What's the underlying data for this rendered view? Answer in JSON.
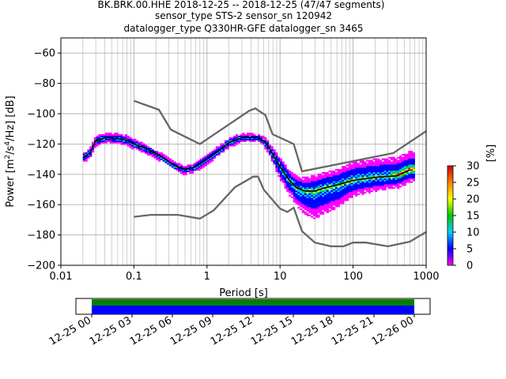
{
  "chart_data": {
    "type": "heatmap",
    "title_lines": [
      "BK.BRK.00.HHE   2018-12-25 -- 2018-12-25  (47/47 segments)",
      "sensor_type STS-2 sensor_sn 120942",
      "datalogger_type Q330HR-GFE datalogger_sn 3465"
    ],
    "xlabel": "Period [s]",
    "ylabel": "Power [m$^2$/s$^4$/Hz] [dB]",
    "ylabel_parts": [
      "Power [m",
      "2",
      "/s",
      "4",
      "/Hz] [dB]"
    ],
    "x_scale": "log",
    "xlim": [
      0.01,
      1000
    ],
    "ylim": [
      -200,
      -50
    ],
    "x_ticks": [
      {
        "v": 0.01,
        "label": "0.01"
      },
      {
        "v": 0.1,
        "label": "0.1"
      },
      {
        "v": 1,
        "label": "1"
      },
      {
        "v": 10,
        "label": "10"
      },
      {
        "v": 100,
        "label": "100"
      },
      {
        "v": 1000,
        "label": "1000"
      }
    ],
    "y_ticks": [
      {
        "v": -60,
        "label": "−60"
      },
      {
        "v": -80,
        "label": "−80"
      },
      {
        "v": -100,
        "label": "−100"
      },
      {
        "v": -120,
        "label": "−120"
      },
      {
        "v": -140,
        "label": "−140"
      },
      {
        "v": -160,
        "label": "−160"
      },
      {
        "v": -180,
        "label": "−180"
      },
      {
        "v": -200,
        "label": "−200"
      }
    ],
    "grid": true,
    "colorbar": {
      "label": "[%]",
      "range": [
        0,
        30
      ],
      "ticks": [
        {
          "v": 0,
          "label": "0"
        },
        {
          "v": 5,
          "label": "5"
        },
        {
          "v": 10,
          "label": "10"
        },
        {
          "v": 15,
          "label": "15"
        },
        {
          "v": 20,
          "label": "20"
        },
        {
          "v": 25,
          "label": "25"
        },
        {
          "v": 30,
          "label": "30"
        }
      ],
      "colors": [
        "#ff00ff",
        "#0000ff",
        "#00d0ff",
        "#00c800",
        "#ffff00",
        "#ff8000",
        "#d00000"
      ]
    },
    "noise_model_high": {
      "x": [
        0.1,
        0.22,
        0.32,
        0.8,
        3.8,
        4.6,
        6.3,
        7.9,
        15.4,
        20,
        354.8,
        1000
      ],
      "y": [
        -91.5,
        -97.4,
        -110.5,
        -120,
        -98,
        -96.5,
        -101,
        -113.5,
        -120,
        -138,
        -126,
        -111.5
      ]
    },
    "noise_model_low": {
      "x": [
        0.1,
        0.17,
        0.4,
        0.8,
        1.24,
        2.4,
        4.3,
        5,
        6,
        10,
        12.6,
        15.4,
        20,
        30,
        50,
        74,
        100,
        150,
        300,
        600,
        1000
      ],
      "y": [
        -168,
        -166.7,
        -166.7,
        -169.2,
        -163.7,
        -148.6,
        -141.5,
        -141.5,
        -150.2,
        -162.6,
        -164.8,
        -162,
        -177.5,
        -185,
        -187.5,
        -187.5,
        -185,
        -185,
        -187.5,
        -184.4,
        -178
      ]
    },
    "mean_curve": {
      "x": [
        0.02,
        0.025,
        0.03,
        0.04,
        0.05,
        0.06,
        0.08,
        0.1,
        0.13,
        0.18,
        0.25,
        0.35,
        0.5,
        0.7,
        1,
        1.5,
        2,
        3,
        4,
        5,
        6,
        7,
        8,
        10,
        13,
        17,
        22,
        30,
        40,
        60,
        100,
        200,
        400,
        600
      ],
      "y": [
        -129,
        -126,
        -118,
        -116,
        -116,
        -116.5,
        -117.5,
        -120,
        -122,
        -125,
        -129,
        -134,
        -137,
        -135,
        -130,
        -124,
        -119,
        -116,
        -115.5,
        -116,
        -118,
        -122,
        -127,
        -135,
        -143,
        -149,
        -151,
        -151,
        -149,
        -147,
        -144,
        -142,
        -141,
        -137
      ]
    },
    "heatmap_spread": {
      "x": [
        0.02,
        0.03,
        0.05,
        0.1,
        0.2,
        0.5,
        1,
        2,
        5,
        8,
        10,
        15,
        20,
        30,
        60,
        100,
        300,
        700
      ],
      "above": [
        3,
        3,
        3,
        3,
        2,
        2,
        3,
        3,
        2,
        4,
        6,
        7,
        8,
        10,
        10,
        12,
        12,
        12
      ],
      "below": [
        3,
        3,
        3,
        3,
        3,
        3,
        3,
        3,
        2,
        5,
        8,
        10,
        14,
        18,
        15,
        10,
        8,
        8
      ]
    },
    "time_bar": {
      "segments": 47,
      "tick_labels": [
        "12-25 00",
        "12-25 03",
        "12-25 06",
        "12-25 09",
        "12-25 12",
        "12-25 15",
        "12-25 18",
        "12-25 21",
        "12-26 00"
      ],
      "colors": [
        "#008000",
        "#0000ff"
      ]
    }
  }
}
